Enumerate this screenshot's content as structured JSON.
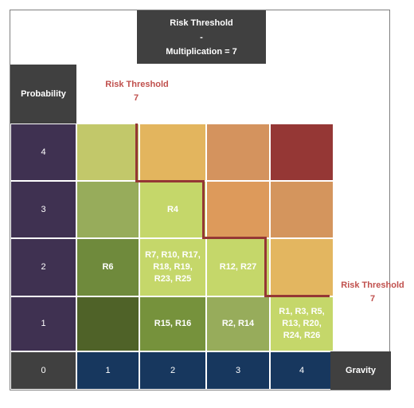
{
  "title": {
    "line1": "Risk Threshold",
    "line2": "-",
    "line3": "Multiplication = 7"
  },
  "headers": {
    "probability": "Probability",
    "gravity": "Gravity",
    "origin": "0"
  },
  "threshold_labels": {
    "top": {
      "line1": "Risk Threshold",
      "line2": "7"
    },
    "right": {
      "line1": "Risk Threshold",
      "line2": "7"
    }
  },
  "y_ticks": [
    "4",
    "3",
    "2",
    "1"
  ],
  "x_ticks": [
    "1",
    "2",
    "3",
    "4"
  ],
  "colors": {
    "axis_purple": "#3f3151",
    "axis_navy": "#17375e",
    "dark_gray": "#404040",
    "threshold_line": "#953735",
    "threshold_text": "#c0504d"
  },
  "matrix": [
    [
      {
        "color": "#c2c86a",
        "label": ""
      },
      {
        "color": "#e3b55e",
        "label": ""
      },
      {
        "color": "#d4935e",
        "label": ""
      },
      {
        "color": "#953735",
        "label": ""
      }
    ],
    [
      {
        "color": "#97ac5b",
        "label": ""
      },
      {
        "color": "#c5d76a",
        "label": "R4"
      },
      {
        "color": "#dd9a5b",
        "label": ""
      },
      {
        "color": "#d4955d",
        "label": ""
      }
    ],
    [
      {
        "color": "#6f8a3c",
        "label": "R6"
      },
      {
        "color": "#c5d76a",
        "label": "R7, R10, R17,\nR18, R19,\nR23, R25"
      },
      {
        "color": "#c5d76a",
        "label": "R12, R27"
      },
      {
        "color": "#e3b660",
        "label": ""
      }
    ],
    [
      {
        "color": "#4f6228",
        "label": ""
      },
      {
        "color": "#76923c",
        "label": "R15, R16"
      },
      {
        "color": "#97ac5b",
        "label": "R2, R14"
      },
      {
        "color": "#c5d76a",
        "label": "R1, R3, R5,\nR13, R20,\nR24, R26"
      }
    ]
  ]
}
